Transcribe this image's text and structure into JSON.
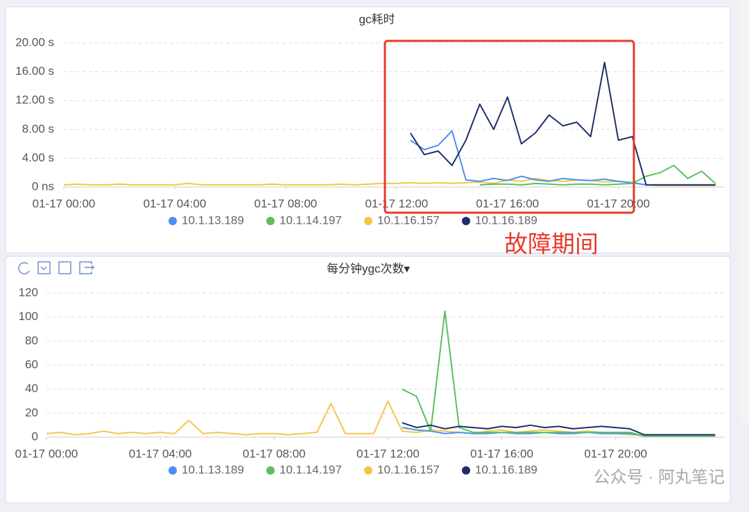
{
  "chart_data": [
    {
      "type": "line",
      "title": "gc耗时",
      "annotation": "故障期间",
      "x": [
        "01-17 00:00",
        "01-17 00:30",
        "01-17 01:00",
        "01-17 01:30",
        "01-17 02:00",
        "01-17 02:30",
        "01-17 03:00",
        "01-17 03:30",
        "01-17 04:00",
        "01-17 04:30",
        "01-17 05:00",
        "01-17 05:30",
        "01-17 06:00",
        "01-17 06:30",
        "01-17 07:00",
        "01-17 07:30",
        "01-17 08:00",
        "01-17 08:30",
        "01-17 09:00",
        "01-17 09:30",
        "01-17 10:00",
        "01-17 10:30",
        "01-17 11:00",
        "01-17 11:30",
        "01-17 12:00",
        "01-17 12:30",
        "01-17 13:00",
        "01-17 13:30",
        "01-17 14:00",
        "01-17 14:30",
        "01-17 15:00",
        "01-17 15:30",
        "01-17 16:00",
        "01-17 16:30",
        "01-17 17:00",
        "01-17 17:30",
        "01-17 18:00",
        "01-17 18:30",
        "01-17 19:00",
        "01-17 19:30",
        "01-17 20:00",
        "01-17 20:30",
        "01-17 21:00",
        "01-17 21:30",
        "01-17 22:00",
        "01-17 22:30",
        "01-17 23:00",
        "01-17 23:30"
      ],
      "xlim": [
        "01-17 00:00",
        "01-17 23:50"
      ],
      "xticks": [
        "01-17 00:00",
        "01-17 04:00",
        "01-17 08:00",
        "01-17 12:00",
        "01-17 16:00",
        "01-17 20:00"
      ],
      "ylim": [
        0,
        20
      ],
      "yticks": [
        {
          "value": 0,
          "label": "0 ns"
        },
        {
          "value": 4,
          "label": "4.00 s"
        },
        {
          "value": 8,
          "label": "8.00 s"
        },
        {
          "value": 12,
          "label": "12.00 s"
        },
        {
          "value": 16,
          "label": "16.00 s"
        },
        {
          "value": 20,
          "label": "20.00 s"
        }
      ],
      "grid": true,
      "series": [
        {
          "name": "10.1.16.157",
          "color": "#f2c744",
          "values": [
            0.3,
            0.4,
            0.3,
            0.3,
            0.4,
            0.3,
            0.3,
            0.3,
            0.3,
            0.5,
            0.3,
            0.3,
            0.3,
            0.3,
            0.3,
            0.4,
            0.3,
            0.3,
            0.3,
            0.3,
            0.4,
            0.3,
            0.4,
            0.5,
            0.5,
            0.6,
            0.5,
            0.6,
            0.5,
            0.6,
            0.7,
            0.5,
            1.0,
            0.8,
            1.2,
            0.9,
            0.8,
            1.0,
            0.9,
            0.7,
            0.8,
            0.6,
            0.3,
            0.2,
            0.2,
            0.2,
            0.2,
            0.2
          ]
        },
        {
          "name": "10.1.13.189",
          "color": "#4a90f0",
          "values": [
            null,
            null,
            null,
            null,
            null,
            null,
            null,
            null,
            null,
            null,
            null,
            null,
            null,
            null,
            null,
            null,
            null,
            null,
            null,
            null,
            null,
            null,
            null,
            null,
            null,
            6.5,
            5.2,
            5.8,
            7.8,
            1.0,
            0.8,
            1.2,
            0.9,
            1.5,
            1.0,
            0.8,
            1.2,
            1.0,
            0.9,
            1.1,
            0.8,
            0.6,
            0.3,
            0.3,
            0.3,
            0.3,
            0.3,
            0.3
          ]
        },
        {
          "name": "10.1.14.197",
          "color": "#5cbf5c",
          "values": [
            null,
            null,
            null,
            null,
            null,
            null,
            null,
            null,
            null,
            null,
            null,
            null,
            null,
            null,
            null,
            null,
            null,
            null,
            null,
            null,
            null,
            null,
            null,
            null,
            null,
            null,
            null,
            null,
            null,
            null,
            0.3,
            0.4,
            0.4,
            0.3,
            0.5,
            0.4,
            0.3,
            0.4,
            0.4,
            0.3,
            0.4,
            0.5,
            1.5,
            2.0,
            3.0,
            1.2,
            2.2,
            0.5
          ]
        },
        {
          "name": "10.1.16.189",
          "color": "#1f2d6b",
          "values": [
            null,
            null,
            null,
            null,
            null,
            null,
            null,
            null,
            null,
            null,
            null,
            null,
            null,
            null,
            null,
            null,
            null,
            null,
            null,
            null,
            null,
            null,
            null,
            null,
            null,
            7.5,
            4.5,
            5.0,
            3.0,
            6.5,
            11.5,
            8.0,
            12.5,
            6.0,
            7.5,
            10.0,
            8.5,
            9.0,
            7.0,
            17.3,
            6.5,
            7.0,
            0.3,
            0.3,
            0.3,
            0.3,
            0.3,
            0.3
          ]
        }
      ],
      "legend": [
        "10.1.13.189",
        "10.1.14.197",
        "10.1.16.157",
        "10.1.16.189"
      ]
    },
    {
      "type": "line",
      "title": "每分钟ygc次数▾",
      "x": [
        "01-17 00:00",
        "01-17 00:30",
        "01-17 01:00",
        "01-17 01:30",
        "01-17 02:00",
        "01-17 02:30",
        "01-17 03:00",
        "01-17 03:30",
        "01-17 04:00",
        "01-17 04:30",
        "01-17 05:00",
        "01-17 05:30",
        "01-17 06:00",
        "01-17 06:30",
        "01-17 07:00",
        "01-17 07:30",
        "01-17 08:00",
        "01-17 08:30",
        "01-17 09:00",
        "01-17 09:30",
        "01-17 10:00",
        "01-17 10:30",
        "01-17 11:00",
        "01-17 11:30",
        "01-17 12:00",
        "01-17 12:30",
        "01-17 13:00",
        "01-17 13:30",
        "01-17 14:00",
        "01-17 14:30",
        "01-17 15:00",
        "01-17 15:30",
        "01-17 16:00",
        "01-17 16:30",
        "01-17 17:00",
        "01-17 17:30",
        "01-17 18:00",
        "01-17 18:30",
        "01-17 19:00",
        "01-17 19:30",
        "01-17 20:00",
        "01-17 20:30",
        "01-17 21:00",
        "01-17 21:30",
        "01-17 22:00",
        "01-17 22:30",
        "01-17 23:00",
        "01-17 23:30"
      ],
      "xlim": [
        "01-17 00:00",
        "01-17 23:50"
      ],
      "xticks": [
        "01-17 00:00",
        "01-17 04:00",
        "01-17 08:00",
        "01-17 12:00",
        "01-17 16:00",
        "01-17 20:00"
      ],
      "ylim": [
        0,
        120
      ],
      "yticks": [
        0,
        20,
        40,
        60,
        80,
        100,
        120
      ],
      "grid": true,
      "series": [
        {
          "name": "10.1.16.157",
          "color": "#f2c744",
          "values": [
            3,
            4,
            2,
            3,
            5,
            3,
            4,
            3,
            4,
            3,
            14,
            3,
            4,
            3,
            2,
            3,
            3,
            2,
            3,
            4,
            28,
            3,
            3,
            3,
            30,
            5,
            4,
            6,
            5,
            4,
            3,
            5,
            6,
            4,
            5,
            6,
            5,
            4,
            5,
            4,
            3,
            2,
            2,
            2,
            2,
            2,
            2,
            2
          ]
        },
        {
          "name": "10.1.13.189",
          "color": "#4a90f0",
          "values": [
            null,
            null,
            null,
            null,
            null,
            null,
            null,
            null,
            null,
            null,
            null,
            null,
            null,
            null,
            null,
            null,
            null,
            null,
            null,
            null,
            null,
            null,
            null,
            null,
            null,
            8,
            6,
            5,
            3,
            4,
            3,
            3,
            4,
            3,
            3,
            4,
            3,
            3,
            4,
            3,
            3,
            3,
            1,
            1,
            1,
            1,
            1,
            1
          ]
        },
        {
          "name": "10.1.14.197",
          "color": "#5cbf5c",
          "values": [
            null,
            null,
            null,
            null,
            null,
            null,
            null,
            null,
            null,
            null,
            null,
            null,
            null,
            null,
            null,
            null,
            null,
            null,
            null,
            null,
            null,
            null,
            null,
            null,
            null,
            40,
            34,
            5,
            105,
            8,
            4,
            4,
            4,
            4,
            4,
            4,
            4,
            4,
            4,
            4,
            4,
            4,
            1,
            1,
            1,
            1,
            1,
            1
          ]
        },
        {
          "name": "10.1.16.189",
          "color": "#1f2d6b",
          "values": [
            null,
            null,
            null,
            null,
            null,
            null,
            null,
            null,
            null,
            null,
            null,
            null,
            null,
            null,
            null,
            null,
            null,
            null,
            null,
            null,
            null,
            null,
            null,
            null,
            null,
            12,
            8,
            10,
            7,
            9,
            8,
            7,
            9,
            8,
            10,
            8,
            9,
            7,
            8,
            9,
            8,
            7,
            2,
            2,
            2,
            2,
            2,
            2
          ]
        }
      ],
      "legend": [
        "10.1.13.189",
        "10.1.14.197",
        "10.1.16.157",
        "10.1.16.189"
      ]
    }
  ],
  "watermark": "公众号 · 阿丸笔记"
}
